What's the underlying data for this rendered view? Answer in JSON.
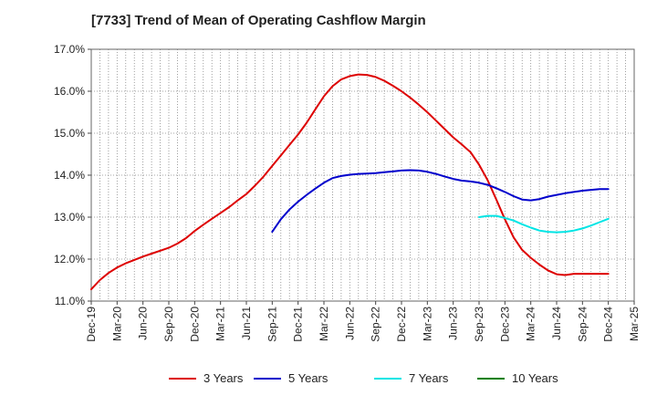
{
  "chart_data": {
    "type": "line",
    "title": "[7733]  Trend of Mean of Operating Cashflow Margin",
    "xlabel": "",
    "ylabel": "",
    "ylim": [
      11.0,
      17.0
    ],
    "ytick_labels": [
      "11.0%",
      "12.0%",
      "13.0%",
      "14.0%",
      "15.0%",
      "16.0%",
      "17.0%"
    ],
    "yticks": [
      11,
      12,
      13,
      14,
      15,
      16,
      17
    ],
    "x_labels": [
      "Dec-19",
      "Mar-20",
      "Jun-20",
      "Sep-20",
      "Dec-20",
      "Mar-21",
      "Jun-21",
      "Sep-21",
      "Dec-21",
      "Mar-22",
      "Jun-22",
      "Sep-22",
      "Dec-22",
      "Mar-23",
      "Jun-23",
      "Sep-23",
      "Dec-23",
      "Mar-24",
      "Jun-24",
      "Sep-24",
      "Dec-24",
      "Mar-25"
    ],
    "grid": true,
    "legend_position": "bottom",
    "series": [
      {
        "name": "3 Years",
        "color": "#dd0000",
        "x": [
          "Dec-19",
          "Jan-20",
          "Feb-20",
          "Mar-20",
          "Apr-20",
          "May-20",
          "Jun-20",
          "Jul-20",
          "Aug-20",
          "Sep-20",
          "Oct-20",
          "Nov-20",
          "Dec-20",
          "Jan-21",
          "Feb-21",
          "Mar-21",
          "Apr-21",
          "May-21",
          "Jun-21",
          "Jul-21",
          "Aug-21",
          "Sep-21",
          "Oct-21",
          "Nov-21",
          "Dec-21",
          "Jan-22",
          "Feb-22",
          "Mar-22",
          "Apr-22",
          "May-22",
          "Jun-22",
          "Jul-22",
          "Aug-22",
          "Sep-22",
          "Oct-22",
          "Nov-22",
          "Dec-22",
          "Jan-23",
          "Feb-23",
          "Mar-23",
          "Apr-23",
          "May-23",
          "Jun-23",
          "Jul-23",
          "Aug-23",
          "Sep-23",
          "Oct-23",
          "Nov-23",
          "Dec-23",
          "Jan-24",
          "Feb-24",
          "Mar-24",
          "Apr-24",
          "May-24",
          "Jun-24",
          "Jul-24",
          "Aug-24",
          "Sep-24",
          "Oct-24",
          "Nov-24",
          "Dec-24"
        ],
        "values": [
          11.28,
          11.5,
          11.67,
          11.8,
          11.9,
          11.98,
          12.06,
          12.13,
          12.2,
          12.27,
          12.37,
          12.5,
          12.67,
          12.82,
          12.96,
          13.1,
          13.24,
          13.4,
          13.55,
          13.75,
          13.97,
          14.22,
          14.47,
          14.72,
          14.97,
          15.25,
          15.57,
          15.88,
          16.12,
          16.28,
          16.36,
          16.4,
          16.39,
          16.34,
          16.25,
          16.13,
          16.0,
          15.85,
          15.68,
          15.5,
          15.3,
          15.1,
          14.9,
          14.73,
          14.55,
          14.25,
          13.88,
          13.42,
          12.95,
          12.52,
          12.22,
          12.03,
          11.87,
          11.73,
          11.64,
          11.62,
          11.65,
          11.65,
          11.65,
          11.65,
          11.65
        ],
        "values_note": ""
      },
      {
        "name": "5 Years",
        "color": "#0000cc",
        "x": [
          "Sep-21",
          "Oct-21",
          "Nov-21",
          "Dec-21",
          "Jan-22",
          "Feb-22",
          "Mar-22",
          "Apr-22",
          "May-22",
          "Jun-22",
          "Jul-22",
          "Aug-22",
          "Sep-22",
          "Oct-22",
          "Nov-22",
          "Dec-22",
          "Jan-23",
          "Feb-23",
          "Mar-23",
          "Apr-23",
          "May-23",
          "Jun-23",
          "Jul-23",
          "Aug-23",
          "Sep-23",
          "Oct-23",
          "Nov-23",
          "Dec-23",
          "Jan-24",
          "Feb-24",
          "Mar-24",
          "Apr-24",
          "May-24",
          "Jun-24",
          "Jul-24",
          "Aug-24",
          "Sep-24",
          "Oct-24",
          "Nov-24",
          "Dec-24"
        ],
        "values": [
          12.65,
          12.95,
          13.18,
          13.37,
          13.53,
          13.68,
          13.82,
          13.93,
          13.98,
          14.01,
          14.03,
          14.04,
          14.05,
          14.07,
          14.09,
          14.11,
          14.12,
          14.11,
          14.08,
          14.03,
          13.97,
          13.91,
          13.87,
          13.85,
          13.82,
          13.77,
          13.69,
          13.6,
          13.5,
          13.42,
          13.4,
          13.43,
          13.49,
          13.53,
          13.57,
          13.6,
          13.63,
          13.65,
          13.67,
          13.67
        ]
      },
      {
        "name": "7 Years",
        "color": "#00e5e5",
        "x": [
          "Sep-23",
          "Oct-23",
          "Nov-23",
          "Dec-23",
          "Jan-24",
          "Feb-24",
          "Mar-24",
          "Apr-24",
          "May-24",
          "Jun-24",
          "Jul-24",
          "Aug-24",
          "Sep-24",
          "Oct-24",
          "Nov-24",
          "Dec-24"
        ],
        "values": [
          13.0,
          13.03,
          13.03,
          12.98,
          12.92,
          12.83,
          12.75,
          12.68,
          12.65,
          12.64,
          12.65,
          12.68,
          12.73,
          12.8,
          12.88,
          12.96
        ]
      },
      {
        "name": "10 Years",
        "color": "#008000",
        "x": [],
        "values": []
      }
    ]
  }
}
